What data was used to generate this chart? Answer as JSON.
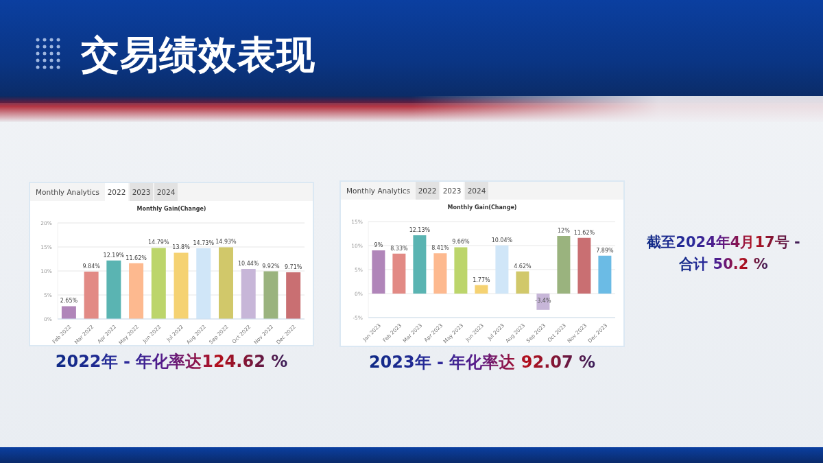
{
  "chart_data": [
    {
      "type": "other",
      "title": "交易绩效表现"
    },
    {
      "type": "bar",
      "title": "Monthly Gain(Change)",
      "annotations": [
        "Monthly Analytics",
        "2022",
        "2023",
        "2024",
        "2022年 - 年化率达124.62 %"
      ],
      "categories": [
        "Feb 2022",
        "Mar 2022",
        "Apr 2022",
        "May 2022",
        "Jun 2022",
        "Jul 2022",
        "Aug 2022",
        "Sep 2022",
        "Oct 2022",
        "Nov 2022",
        "Dec 2022"
      ],
      "values": [
        2.65,
        9.84,
        12.19,
        11.62,
        14.79,
        13.8,
        14.73,
        14.93,
        10.44,
        9.92,
        9.71
      ],
      "colors": [
        "#b085b9",
        "#e28a85",
        "#5ab4b2",
        "#fdb98f",
        "#bcd56b",
        "#f5d272",
        "#d0e6f8",
        "#d1c86a",
        "#c7b6d8",
        "#9ab37e",
        "#c96f72"
      ],
      "value_labels": [
        "2.65%",
        "9.84%",
        "12.19%",
        "11.62%",
        "14.79%",
        "13.8%",
        "14.73%",
        "14.93%",
        "10.44%",
        "9.92%",
        "9.71%"
      ],
      "ylim": [
        0,
        20
      ],
      "yticks": [
        {
          "value": 0,
          "label": "0%"
        },
        {
          "value": 5,
          "label": "5%"
        },
        {
          "value": 10,
          "label": "10%"
        },
        {
          "value": 15,
          "label": "15%"
        },
        {
          "value": 20,
          "label": "20%"
        }
      ],
      "grid": "y"
    },
    {
      "type": "bar",
      "title": "Monthly Gain(Change)",
      "annotations": [
        "Monthly Analytics",
        "2022",
        "2023",
        "2024",
        "2023年 - 年化率达 92.07 %"
      ],
      "categories": [
        "Jan 2023",
        "Feb 2023",
        "Mar 2023",
        "Apr 2023",
        "May 2023",
        "Jun 2023",
        "Jul 2023",
        "Aug 2023",
        "Sep 2023",
        "Oct 2023",
        "Nov 2023",
        "Dec 2023"
      ],
      "values": [
        9,
        8.33,
        12.13,
        8.41,
        9.66,
        1.77,
        10.04,
        4.62,
        -3.4,
        12,
        11.62,
        7.89
      ],
      "colors": [
        "#b085b9",
        "#e28a85",
        "#5ab4b2",
        "#fdb98f",
        "#bcd56b",
        "#f5d272",
        "#d0e6f8",
        "#d1c86a",
        "#c7b6d8",
        "#9ab37e",
        "#c96f72",
        "#6bbbe5"
      ],
      "value_labels": [
        "9%",
        "8.33%",
        "12.13%",
        "8.41%",
        "9.66%",
        "1.77%",
        "10.04%",
        "4.62%",
        "-3.4%",
        "12%",
        "11.62%",
        "7.89%"
      ],
      "ylim": [
        -5,
        15
      ],
      "yticks": [
        {
          "value": -5,
          "label": "-5%"
        },
        {
          "value": 0,
          "label": "0%"
        },
        {
          "value": 5,
          "label": "5%"
        },
        {
          "value": 10,
          "label": "10%"
        },
        {
          "value": 15,
          "label": "15%"
        }
      ],
      "grid": "y"
    },
    {
      "type": "other",
      "annotations": [
        "截至2024年4月17号 -",
        "合计 50.2 %"
      ]
    }
  ]
}
